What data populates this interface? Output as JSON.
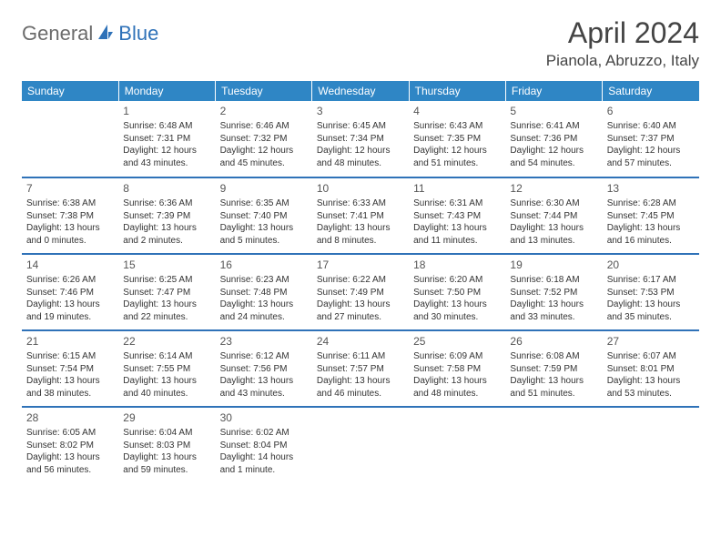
{
  "logo": {
    "text1": "General",
    "text2": "Blue"
  },
  "title": "April 2024",
  "location": "Pianola, Abruzzo, Italy",
  "colors": {
    "header_bg": "#2f86c5",
    "header_text": "#ffffff",
    "rule": "#2f72b8",
    "logo_gray": "#6b6b6b",
    "logo_blue": "#2f72b8",
    "body_text": "#333333"
  },
  "weekdays": [
    "Sunday",
    "Monday",
    "Tuesday",
    "Wednesday",
    "Thursday",
    "Friday",
    "Saturday"
  ],
  "weeks": [
    [
      null,
      {
        "n": "1",
        "sr": "Sunrise: 6:48 AM",
        "ss": "Sunset: 7:31 PM",
        "dl": "Daylight: 12 hours and 43 minutes."
      },
      {
        "n": "2",
        "sr": "Sunrise: 6:46 AM",
        "ss": "Sunset: 7:32 PM",
        "dl": "Daylight: 12 hours and 45 minutes."
      },
      {
        "n": "3",
        "sr": "Sunrise: 6:45 AM",
        "ss": "Sunset: 7:34 PM",
        "dl": "Daylight: 12 hours and 48 minutes."
      },
      {
        "n": "4",
        "sr": "Sunrise: 6:43 AM",
        "ss": "Sunset: 7:35 PM",
        "dl": "Daylight: 12 hours and 51 minutes."
      },
      {
        "n": "5",
        "sr": "Sunrise: 6:41 AM",
        "ss": "Sunset: 7:36 PM",
        "dl": "Daylight: 12 hours and 54 minutes."
      },
      {
        "n": "6",
        "sr": "Sunrise: 6:40 AM",
        "ss": "Sunset: 7:37 PM",
        "dl": "Daylight: 12 hours and 57 minutes."
      }
    ],
    [
      {
        "n": "7",
        "sr": "Sunrise: 6:38 AM",
        "ss": "Sunset: 7:38 PM",
        "dl": "Daylight: 13 hours and 0 minutes."
      },
      {
        "n": "8",
        "sr": "Sunrise: 6:36 AM",
        "ss": "Sunset: 7:39 PM",
        "dl": "Daylight: 13 hours and 2 minutes."
      },
      {
        "n": "9",
        "sr": "Sunrise: 6:35 AM",
        "ss": "Sunset: 7:40 PM",
        "dl": "Daylight: 13 hours and 5 minutes."
      },
      {
        "n": "10",
        "sr": "Sunrise: 6:33 AM",
        "ss": "Sunset: 7:41 PM",
        "dl": "Daylight: 13 hours and 8 minutes."
      },
      {
        "n": "11",
        "sr": "Sunrise: 6:31 AM",
        "ss": "Sunset: 7:43 PM",
        "dl": "Daylight: 13 hours and 11 minutes."
      },
      {
        "n": "12",
        "sr": "Sunrise: 6:30 AM",
        "ss": "Sunset: 7:44 PM",
        "dl": "Daylight: 13 hours and 13 minutes."
      },
      {
        "n": "13",
        "sr": "Sunrise: 6:28 AM",
        "ss": "Sunset: 7:45 PM",
        "dl": "Daylight: 13 hours and 16 minutes."
      }
    ],
    [
      {
        "n": "14",
        "sr": "Sunrise: 6:26 AM",
        "ss": "Sunset: 7:46 PM",
        "dl": "Daylight: 13 hours and 19 minutes."
      },
      {
        "n": "15",
        "sr": "Sunrise: 6:25 AM",
        "ss": "Sunset: 7:47 PM",
        "dl": "Daylight: 13 hours and 22 minutes."
      },
      {
        "n": "16",
        "sr": "Sunrise: 6:23 AM",
        "ss": "Sunset: 7:48 PM",
        "dl": "Daylight: 13 hours and 24 minutes."
      },
      {
        "n": "17",
        "sr": "Sunrise: 6:22 AM",
        "ss": "Sunset: 7:49 PM",
        "dl": "Daylight: 13 hours and 27 minutes."
      },
      {
        "n": "18",
        "sr": "Sunrise: 6:20 AM",
        "ss": "Sunset: 7:50 PM",
        "dl": "Daylight: 13 hours and 30 minutes."
      },
      {
        "n": "19",
        "sr": "Sunrise: 6:18 AM",
        "ss": "Sunset: 7:52 PM",
        "dl": "Daylight: 13 hours and 33 minutes."
      },
      {
        "n": "20",
        "sr": "Sunrise: 6:17 AM",
        "ss": "Sunset: 7:53 PM",
        "dl": "Daylight: 13 hours and 35 minutes."
      }
    ],
    [
      {
        "n": "21",
        "sr": "Sunrise: 6:15 AM",
        "ss": "Sunset: 7:54 PM",
        "dl": "Daylight: 13 hours and 38 minutes."
      },
      {
        "n": "22",
        "sr": "Sunrise: 6:14 AM",
        "ss": "Sunset: 7:55 PM",
        "dl": "Daylight: 13 hours and 40 minutes."
      },
      {
        "n": "23",
        "sr": "Sunrise: 6:12 AM",
        "ss": "Sunset: 7:56 PM",
        "dl": "Daylight: 13 hours and 43 minutes."
      },
      {
        "n": "24",
        "sr": "Sunrise: 6:11 AM",
        "ss": "Sunset: 7:57 PM",
        "dl": "Daylight: 13 hours and 46 minutes."
      },
      {
        "n": "25",
        "sr": "Sunrise: 6:09 AM",
        "ss": "Sunset: 7:58 PM",
        "dl": "Daylight: 13 hours and 48 minutes."
      },
      {
        "n": "26",
        "sr": "Sunrise: 6:08 AM",
        "ss": "Sunset: 7:59 PM",
        "dl": "Daylight: 13 hours and 51 minutes."
      },
      {
        "n": "27",
        "sr": "Sunrise: 6:07 AM",
        "ss": "Sunset: 8:01 PM",
        "dl": "Daylight: 13 hours and 53 minutes."
      }
    ],
    [
      {
        "n": "28",
        "sr": "Sunrise: 6:05 AM",
        "ss": "Sunset: 8:02 PM",
        "dl": "Daylight: 13 hours and 56 minutes."
      },
      {
        "n": "29",
        "sr": "Sunrise: 6:04 AM",
        "ss": "Sunset: 8:03 PM",
        "dl": "Daylight: 13 hours and 59 minutes."
      },
      {
        "n": "30",
        "sr": "Sunrise: 6:02 AM",
        "ss": "Sunset: 8:04 PM",
        "dl": "Daylight: 14 hours and 1 minute."
      },
      null,
      null,
      null,
      null
    ]
  ]
}
